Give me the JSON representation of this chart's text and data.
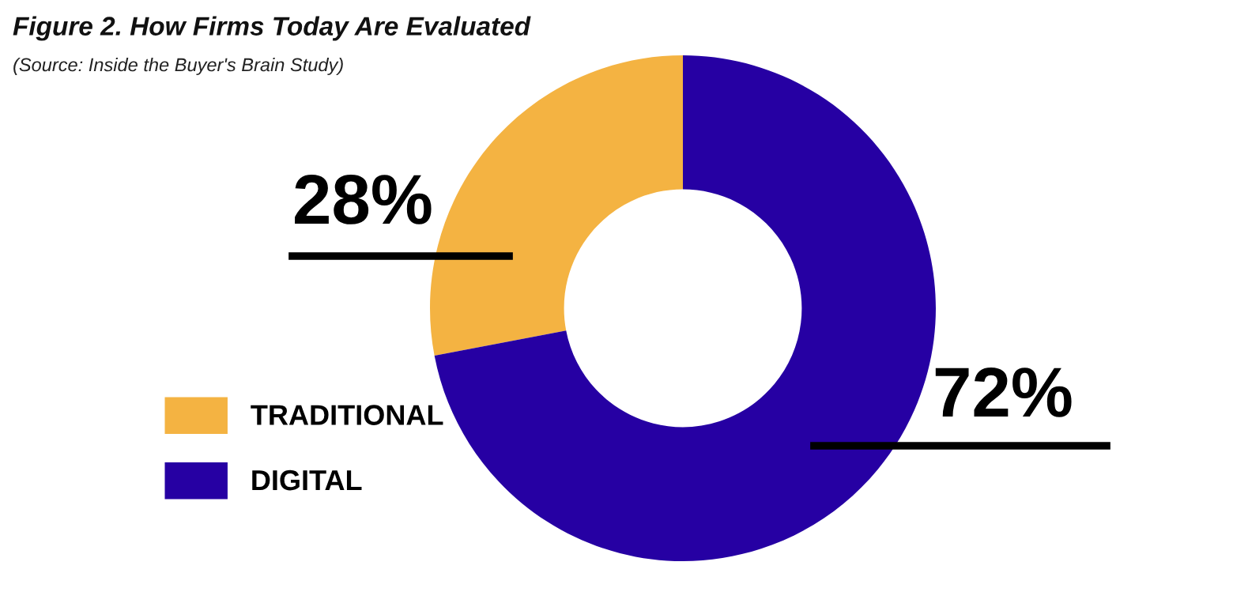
{
  "chart_data": {
    "type": "donut",
    "title": "Figure 2. How Firms Today Are Evaluated",
    "subtitle": "(Source: Inside the Buyer's Brain Study)",
    "categories": [
      "TRADITIONAL",
      "DIGITAL"
    ],
    "values": [
      28,
      72
    ],
    "colors": [
      "#f4b342",
      "#2600a3"
    ],
    "value_labels": [
      "28%",
      "72%"
    ],
    "legend": "left"
  }
}
